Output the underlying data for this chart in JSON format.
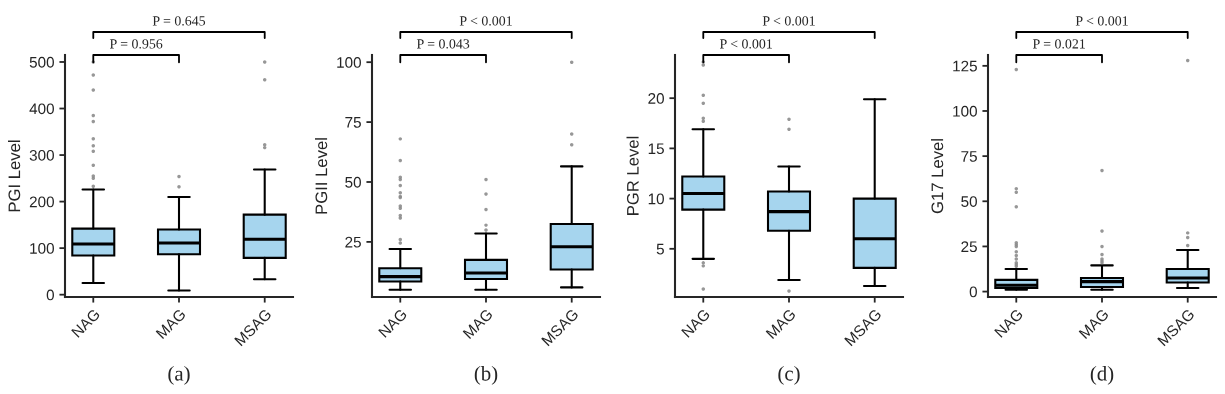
{
  "chart_data": [
    {
      "type": "box",
      "categories": [
        "NAG",
        "MAG",
        "MSAG"
      ],
      "ylabel": "PGI Level",
      "xlabel": "(a)",
      "annotations": [
        "P = 0.956",
        "P = 0.645"
      ],
      "ylim": [
        -5,
        515
      ],
      "yticks": [
        0,
        100,
        200,
        300,
        400,
        500
      ],
      "series": [
        {
          "color": "#a6d5ee",
          "boxes": [
            {
              "low": 25,
              "q1": 84,
              "median": 109,
              "q3": 142,
              "high": 226,
              "outliers": [
                233,
                250,
                255,
                278,
                308,
                320,
                335,
                372,
                385,
                440,
                472,
                500
              ]
            },
            {
              "low": 9,
              "q1": 87,
              "median": 111,
              "q3": 140,
              "high": 210,
              "outliers": [
                232,
                254
              ]
            },
            {
              "low": 33,
              "q1": 79,
              "median": 119,
              "q3": 172,
              "high": 269,
              "outliers": [
                316,
                322,
                462,
                500
              ]
            }
          ]
        }
      ]
    },
    {
      "type": "box",
      "categories": [
        "NAG",
        "MAG",
        "MSAG"
      ],
      "ylabel": "PGII Level",
      "xlabel": "(b)",
      "annotations": [
        "P = 0.043",
        "P < 0.001"
      ],
      "ylim": [
        2,
        103
      ],
      "yticks": [
        25,
        50,
        75,
        100
      ],
      "series": [
        {
          "color": "#a6d5ee",
          "boxes": [
            {
              "low": 5,
              "q1": 8.5,
              "median": 10.5,
              "q3": 14,
              "high": 22,
              "outliers": [
                24.5,
                26,
                35,
                36,
                39,
                40,
                43.5,
                44,
                45.5,
                48.5,
                51,
                52,
                59,
                68
              ]
            },
            {
              "low": 5,
              "q1": 9.5,
              "median": 12,
              "q3": 17.5,
              "high": 28.5,
              "outliers": [
                30,
                32,
                38.5,
                45,
                51
              ]
            },
            {
              "low": 6,
              "q1": 13.5,
              "median": 23,
              "q3": 32.5,
              "high": 56.5,
              "outliers": [
                65.5,
                70,
                100
              ]
            }
          ]
        }
      ]
    },
    {
      "type": "box",
      "categories": [
        "NAG",
        "MAG",
        "MSAG"
      ],
      "ylabel": "PGR Level",
      "xlabel": "(c)",
      "annotations": [
        "P < 0.001",
        "P < 0.001"
      ],
      "ylim": [
        0.2,
        24.3
      ],
      "yticks": [
        5,
        10,
        15,
        20
      ],
      "series": [
        {
          "color": "#a6d5ee",
          "boxes": [
            {
              "low": 4,
              "q1": 8.9,
              "median": 10.5,
              "q3": 12.2,
              "high": 16.9,
              "outliers": [
                1,
                3.3,
                3.6,
                17.7,
                18,
                19.5,
                20.3,
                23.3,
                23.6
              ]
            },
            {
              "low": 1.9,
              "q1": 6.8,
              "median": 8.7,
              "q3": 10.7,
              "high": 13.2,
              "outliers": [
                0.8,
                16.9,
                17.9
              ]
            },
            {
              "low": 1.3,
              "q1": 3.1,
              "median": 6,
              "q3": 10,
              "high": 19.9
            }
          ]
        }
      ]
    },
    {
      "type": "box",
      "categories": [
        "NAG",
        "MAG",
        "MSAG"
      ],
      "ylabel": "G17 Level",
      "xlabel": "(d)",
      "annotations": [
        "P = 0.021",
        "P < 0.001"
      ],
      "ylim": [
        -3,
        131
      ],
      "yticks": [
        0,
        25,
        50,
        75,
        100,
        125
      ],
      "series": [
        {
          "color": "#a6d5ee",
          "boxes": [
            {
              "low": 1,
              "q1": 2,
              "median": 3.5,
              "q3": 6.5,
              "high": 12.5,
              "outliers": [
                14,
                15,
                16,
                18,
                20,
                22,
                25,
                26,
                27,
                47,
                55,
                57,
                123
              ]
            },
            {
              "low": 1,
              "q1": 2.5,
              "median": 5.5,
              "q3": 7.5,
              "high": 14.5,
              "outliers": [
                16,
                17,
                18,
                20.5,
                25,
                33.5,
                67
              ]
            },
            {
              "low": 2,
              "q1": 5,
              "median": 7.5,
              "q3": 12.5,
              "high": 23,
              "outliers": [
                25.5,
                30,
                32.5,
                128
              ]
            }
          ]
        }
      ]
    }
  ]
}
